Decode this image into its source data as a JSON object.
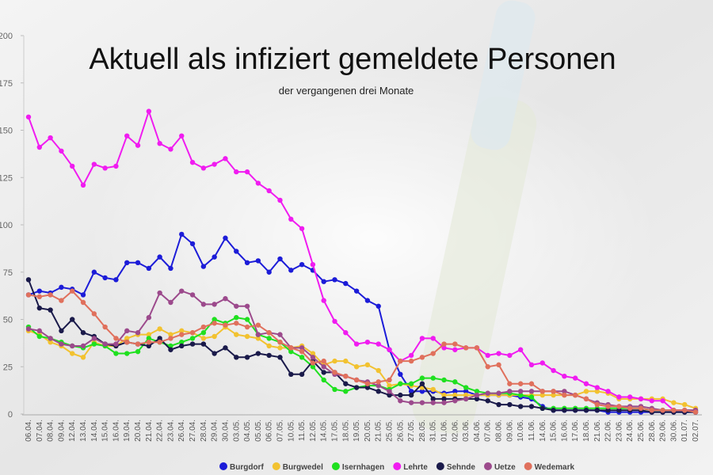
{
  "chart_data": {
    "type": "line",
    "title": "Aktuell als infiziert gemeldete Personen",
    "subtitle": "der vergangenen drei Monate",
    "categories": [
      "06.04.",
      "07.04.",
      "08.04.",
      "09.04.",
      "12.04.",
      "13.04.",
      "14.04.",
      "15.04.",
      "16.04.",
      "19.04.",
      "20.04.",
      "21.04.",
      "22.04.",
      "23.04.",
      "26.04.",
      "27.04.",
      "28.04.",
      "29.04.",
      "30.04.",
      "03.05.",
      "04.05.",
      "05.05.",
      "06.05.",
      "07.05.",
      "10.05.",
      "11.05.",
      "12.05.",
      "14.05.",
      "17.05.",
      "18.05.",
      "19.05.",
      "20.05.",
      "21.05.",
      "25.05.",
      "26.05.",
      "27.05.",
      "28.05.",
      "31.05.",
      "01.06.",
      "02.06.",
      "03.06.",
      "04.06.",
      "07.06.",
      "08.06.",
      "09.06.",
      "10.06.",
      "11.06.",
      "14.06.",
      "15.06.",
      "16.06.",
      "17.06.",
      "18.06.",
      "21.06.",
      "22.06.",
      "23.06.",
      "24.06.",
      "25.06.",
      "28.06.",
      "29.06.",
      "30.06.",
      "01.07.",
      "02.07."
    ],
    "series": [
      {
        "name": "Burgdorf",
        "color": "#1c1cd8",
        "values": [
          63,
          65,
          64,
          67,
          66,
          63,
          75,
          72,
          71,
          80,
          80,
          77,
          83,
          77,
          95,
          90,
          78,
          83,
          93,
          86,
          80,
          81,
          75,
          82,
          76,
          79,
          76,
          70,
          71,
          69,
          65,
          60,
          57,
          34,
          21,
          12,
          12,
          12,
          11,
          12,
          12,
          10,
          10,
          10,
          10,
          9,
          8,
          4,
          2,
          2,
          2,
          2,
          2,
          1,
          1,
          1,
          1,
          1,
          1,
          1,
          1,
          1
        ]
      },
      {
        "name": "Burgwedel",
        "color": "#f2c230",
        "values": [
          44,
          42,
          38,
          36,
          32,
          30,
          38,
          36,
          36,
          40,
          42,
          42,
          45,
          42,
          44,
          43,
          40,
          41,
          46,
          42,
          41,
          40,
          36,
          35,
          35,
          36,
          32,
          26,
          28,
          28,
          25,
          26,
          23,
          15,
          16,
          15,
          14,
          13,
          10,
          10,
          10,
          10,
          10,
          10,
          10,
          10,
          10,
          10,
          10,
          10,
          10,
          12,
          12,
          11,
          8,
          8,
          8,
          8,
          8,
          6,
          5,
          3
        ]
      },
      {
        "name": "Isernhagen",
        "color": "#1fe01f",
        "values": [
          46,
          41,
          40,
          38,
          36,
          35,
          37,
          36,
          32,
          32,
          33,
          40,
          38,
          36,
          38,
          40,
          43,
          50,
          48,
          51,
          50,
          42,
          40,
          38,
          33,
          30,
          25,
          18,
          13,
          12,
          14,
          15,
          15,
          13,
          16,
          16,
          19,
          19,
          18,
          17,
          14,
          12,
          11,
          11,
          11,
          10,
          9,
          3,
          3,
          3,
          3,
          3,
          3,
          3,
          3,
          3,
          3,
          2,
          2,
          2,
          2,
          2
        ]
      },
      {
        "name": "Lehrte",
        "color": "#f01cf0",
        "values": [
          157,
          141,
          146,
          139,
          131,
          121,
          132,
          130,
          131,
          147,
          142,
          160,
          143,
          140,
          147,
          133,
          130,
          132,
          135,
          128,
          128,
          122,
          118,
          113,
          103,
          98,
          79,
          60,
          49,
          43,
          37,
          38,
          37,
          34,
          28,
          31,
          40,
          40,
          35,
          34,
          35,
          35,
          31,
          32,
          31,
          34,
          26,
          27,
          23,
          20,
          19,
          16,
          14,
          12,
          9,
          9,
          8,
          7,
          7,
          2,
          2,
          2
        ]
      },
      {
        "name": "Sehnde",
        "color": "#1a1a4a",
        "values": [
          71,
          56,
          55,
          44,
          50,
          43,
          41,
          37,
          36,
          38,
          37,
          36,
          40,
          34,
          36,
          37,
          37,
          32,
          35,
          30,
          30,
          32,
          31,
          30,
          21,
          21,
          28,
          22,
          22,
          16,
          14,
          14,
          12,
          10,
          10,
          10,
          16,
          8,
          8,
          8,
          8,
          8,
          7,
          5,
          5,
          4,
          4,
          3,
          2,
          2,
          2,
          2,
          2,
          2,
          2,
          2,
          2,
          1,
          1,
          1,
          1,
          1
        ]
      },
      {
        "name": "Uetze",
        "color": "#9c4a8c",
        "values": [
          45,
          44,
          40,
          37,
          36,
          36,
          40,
          37,
          37,
          44,
          43,
          51,
          64,
          59,
          65,
          63,
          58,
          58,
          61,
          57,
          57,
          42,
          43,
          42,
          35,
          35,
          30,
          25,
          21,
          20,
          18,
          17,
          15,
          12,
          7,
          6,
          6,
          6,
          6,
          7,
          8,
          10,
          11,
          11,
          12,
          12,
          12,
          12,
          12,
          12,
          10,
          8,
          6,
          5,
          4,
          4,
          4,
          3,
          2,
          2,
          2,
          2
        ]
      },
      {
        "name": "Wedemark",
        "color": "#e0705c",
        "values": [
          63,
          62,
          63,
          60,
          65,
          59,
          53,
          46,
          40,
          38,
          37,
          38,
          38,
          40,
          42,
          43,
          46,
          48,
          47,
          48,
          46,
          47,
          43,
          38,
          35,
          33,
          27,
          28,
          22,
          20,
          18,
          16,
          17,
          18,
          28,
          28,
          30,
          32,
          37,
          37,
          35,
          35,
          25,
          26,
          16,
          16,
          16,
          12,
          12,
          10,
          10,
          8,
          5,
          4,
          4,
          3,
          3,
          2,
          2,
          2,
          2,
          1
        ]
      }
    ],
    "ylim": [
      0,
      200
    ],
    "yticks": [
      0,
      25,
      50,
      75,
      100,
      125,
      150,
      175,
      200
    ]
  }
}
